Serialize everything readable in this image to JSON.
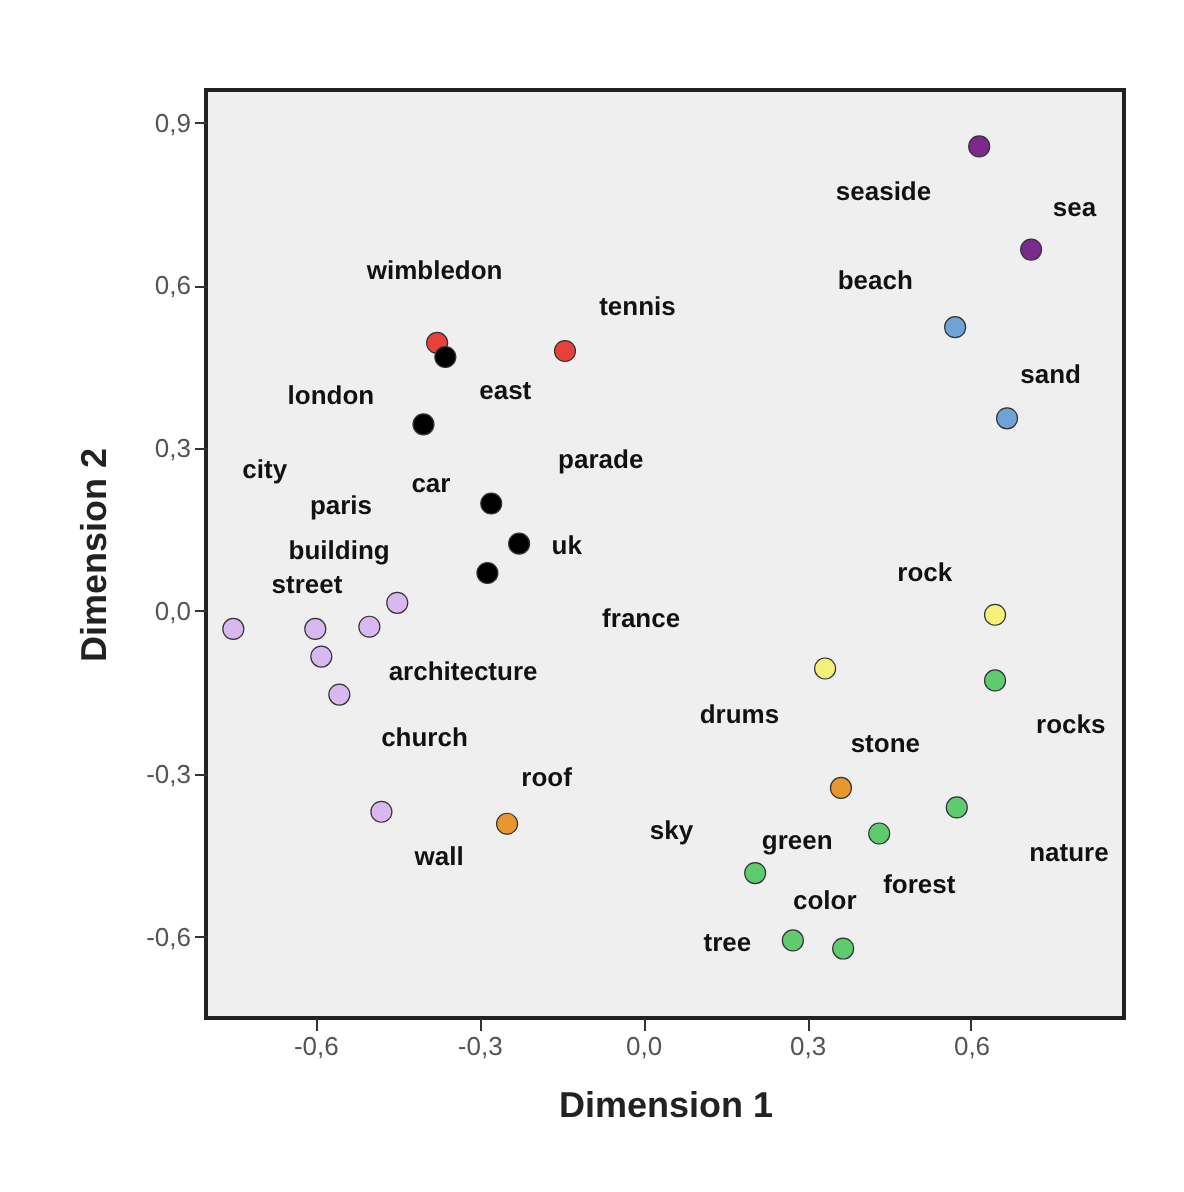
{
  "chart_data": {
    "type": "scatter",
    "xlabel": "Dimension 1",
    "ylabel": "Dimension 2",
    "xlim": [
      -0.8,
      0.88
    ],
    "ylim": [
      -0.75,
      0.96
    ],
    "xticks": [
      {
        "value": -0.6,
        "label": "-0,6"
      },
      {
        "value": -0.3,
        "label": "-0,3"
      },
      {
        "value": 0,
        "label": "0,0"
      },
      {
        "value": 0.3,
        "label": "0,3"
      },
      {
        "value": 0.6,
        "label": "0,6"
      }
    ],
    "yticks": [
      {
        "value": -0.6,
        "label": "-0,6"
      },
      {
        "value": -0.3,
        "label": "-0,3"
      },
      {
        "value": 0,
        "label": "0,0"
      },
      {
        "value": 0.3,
        "label": "0,3"
      },
      {
        "value": 0.6,
        "label": "0,6"
      },
      {
        "value": 0.9,
        "label": "0,9"
      }
    ],
    "grid": false,
    "marker": "circle",
    "series": [
      {
        "color": "#e8413a",
        "x": [
          -0.377,
          -0.143
        ],
        "values": [
          0.494,
          0.479
        ]
      },
      {
        "color": "#000000",
        "x": [
          -0.362,
          -0.402,
          -0.278,
          -0.227,
          -0.285
        ],
        "values": [
          0.468,
          0.344,
          0.198,
          0.124,
          0.07
        ]
      },
      {
        "color": "#d8b8ef",
        "x": [
          -0.75,
          -0.6,
          -0.501,
          -0.45,
          -0.589,
          -0.556,
          -0.479
        ],
        "values": [
          -0.033,
          -0.033,
          -0.029,
          0.015,
          -0.084,
          -0.154,
          -0.37
        ]
      },
      {
        "color": "#7b2a8c",
        "x": [
          0.615,
          0.71
        ],
        "values": [
          0.856,
          0.666
        ]
      },
      {
        "color": "#6fa3d8",
        "x": [
          0.571,
          0.666
        ],
        "values": [
          0.523,
          0.355
        ]
      },
      {
        "color": "#f5f07a",
        "x": [
          0.644,
          0.333
        ],
        "values": [
          -0.007,
          -0.106
        ]
      },
      {
        "color": "#e8962e",
        "x": [
          -0.249,
          0.362
        ],
        "values": [
          -0.392,
          -0.326
        ]
      },
      {
        "color": "#5ecb6e",
        "x": [
          0.644,
          0.574,
          0.432,
          0.205,
          0.274,
          0.366
        ],
        "values": [
          -0.128,
          -0.362,
          -0.41,
          -0.483,
          -0.607,
          -0.622
        ]
      }
    ],
    "annotations": [
      "wimbledon",
      "tennis",
      "london",
      "east",
      "city",
      "car",
      "parade",
      "paris",
      "uk",
      "building",
      "street",
      "france",
      "architecture",
      "church",
      "roof",
      "wall",
      "seaside",
      "sea",
      "beach",
      "sand",
      "rock",
      "drums",
      "stone",
      "rocks",
      "sky",
      "green",
      "nature",
      "forest",
      "color",
      "tree"
    ]
  }
}
